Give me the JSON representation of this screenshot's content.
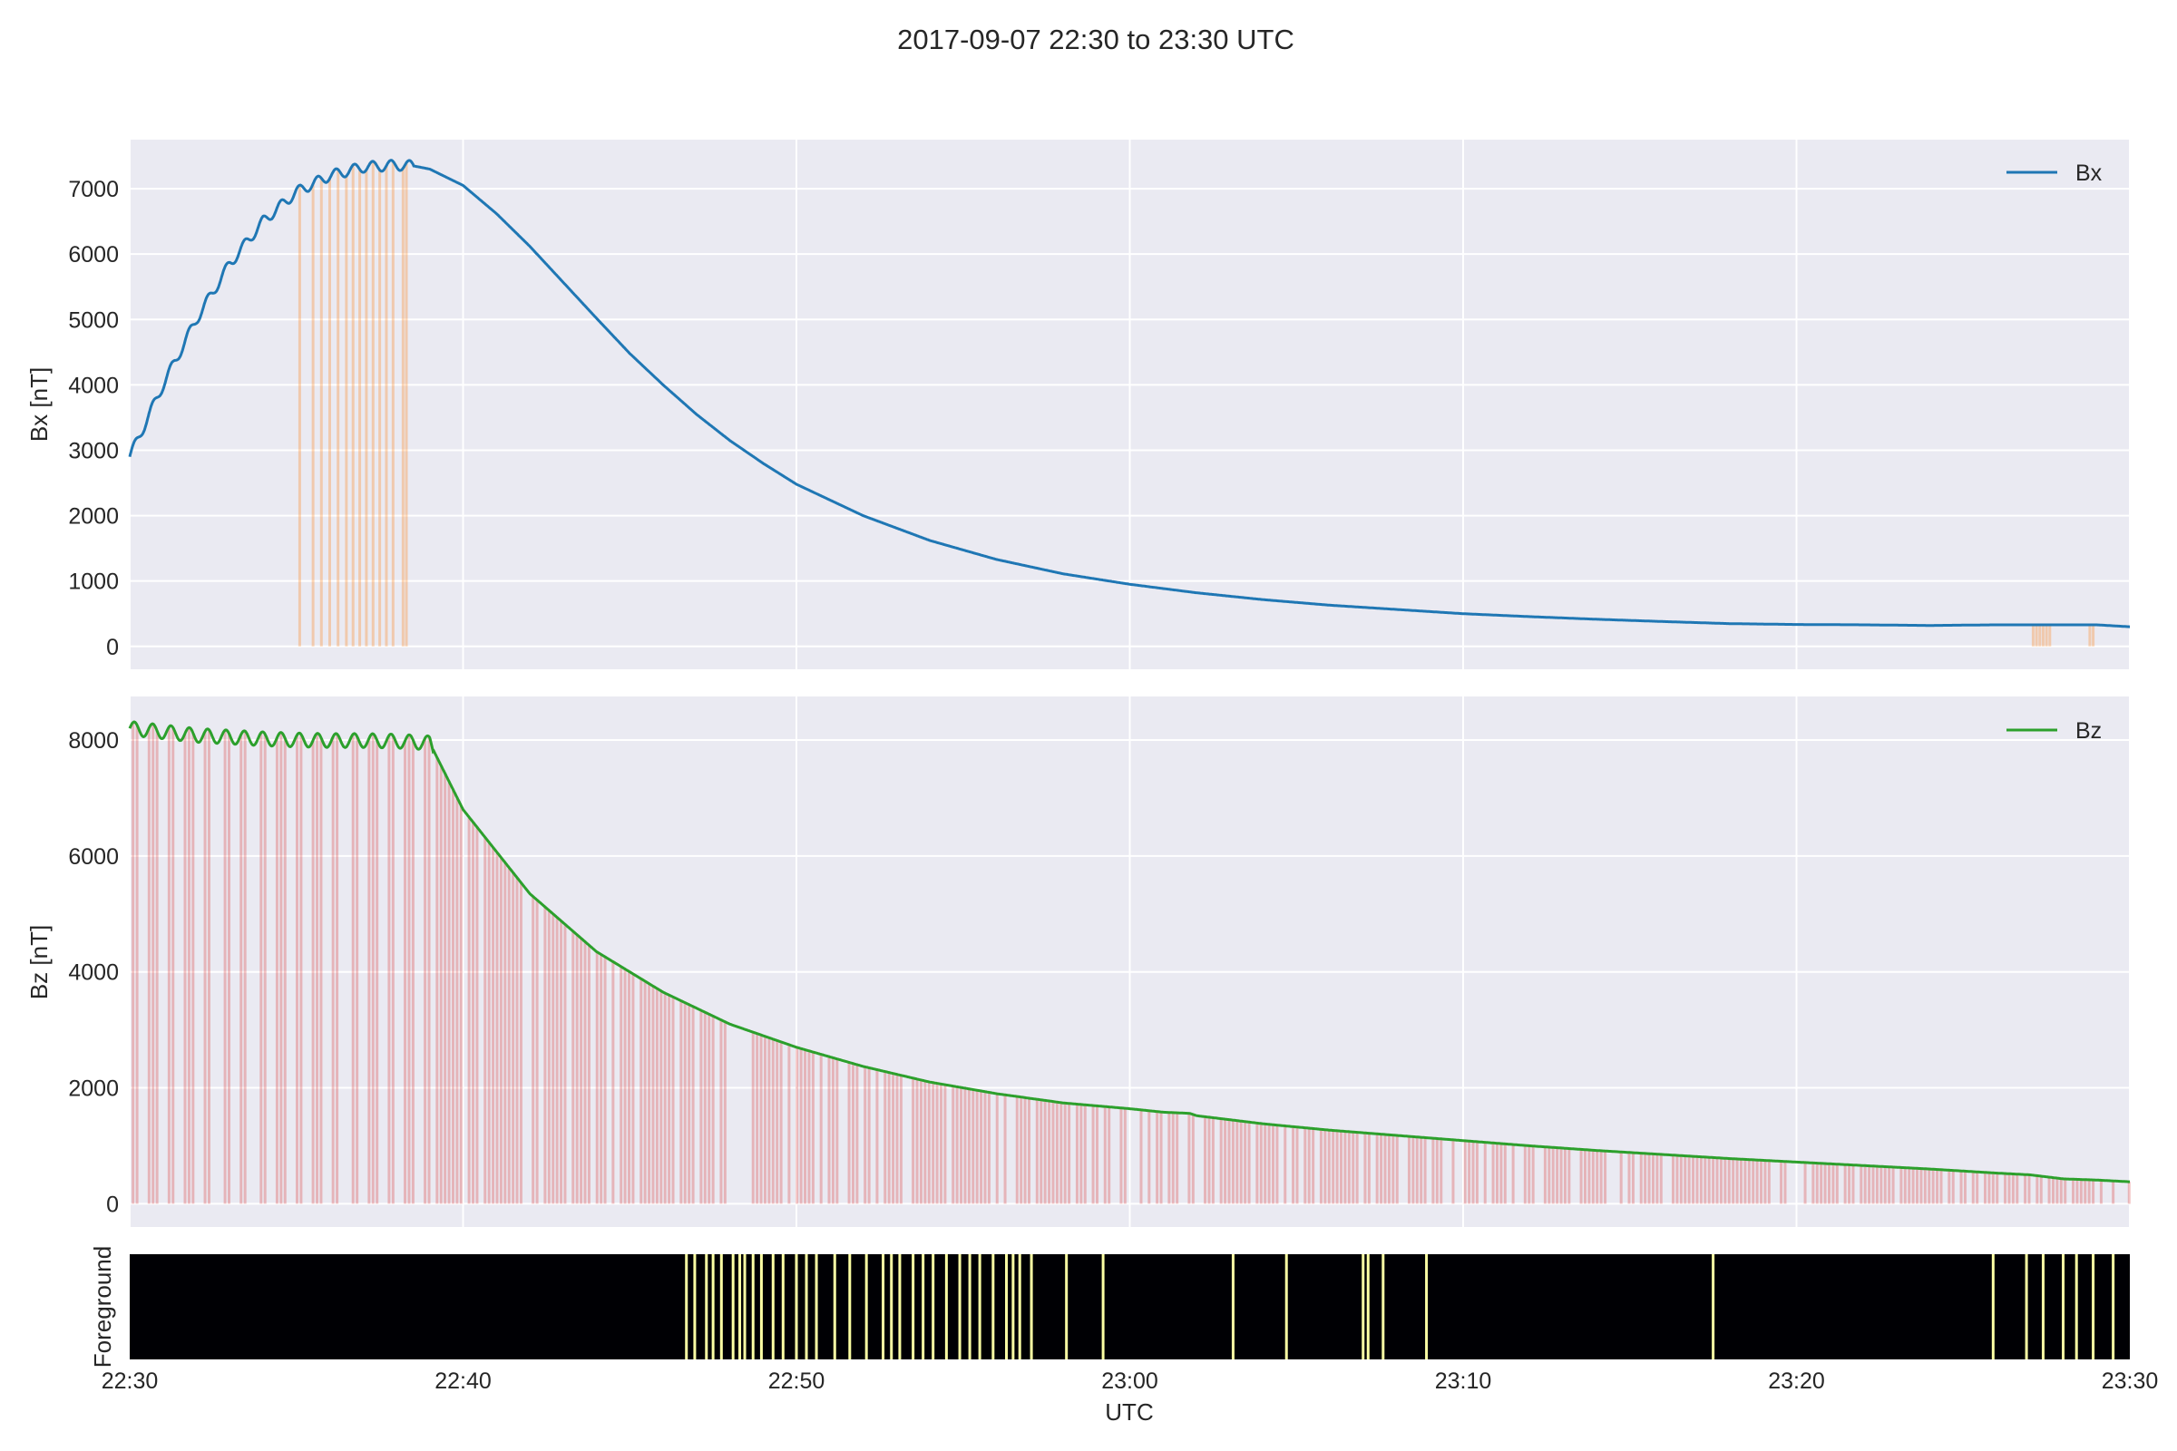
{
  "figure": {
    "title": "2017-09-07 22:30 to 23:30 UTC"
  },
  "chart_data": [
    {
      "id": "bx",
      "type": "line",
      "ylabel": "Bx [nT]",
      "ylim": [
        -350,
        7750
      ],
      "yticks": [
        0,
        1000,
        2000,
        3000,
        4000,
        5000,
        6000,
        7000
      ],
      "xlim_minutes": [
        0,
        60
      ],
      "grid": true,
      "legend": {
        "position": "top-right",
        "label": "Bx"
      },
      "series": [
        {
          "name": "Bx",
          "color": "#1f77b4",
          "t_minutes": [
            0,
            1,
            2,
            3,
            4,
            5,
            6,
            7,
            8,
            8.5,
            9,
            10,
            11,
            12,
            13,
            14,
            15,
            16,
            17,
            18,
            19,
            20,
            22,
            24,
            26,
            28,
            30,
            32,
            34,
            36,
            38,
            40,
            42,
            44,
            46,
            48,
            50,
            52,
            54,
            56,
            57,
            58,
            59,
            60
          ],
          "values": [
            2900,
            4000,
            5000,
            5850,
            6500,
            6950,
            7200,
            7330,
            7360,
            7350,
            7300,
            7050,
            6620,
            6120,
            5570,
            5020,
            4480,
            4000,
            3550,
            3150,
            2800,
            2480,
            2000,
            1620,
            1330,
            1110,
            950,
            820,
            715,
            630,
            565,
            500,
            455,
            415,
            380,
            348,
            335,
            330,
            320,
            330,
            330,
            330,
            330,
            300
          ]
        }
      ],
      "oscillation": {
        "period_minutes": 0.55,
        "amplitude": 80,
        "until_minutes": 8.5
      },
      "shaded_intervals": {
        "color": "#ff7f0e",
        "opacity": 0.3,
        "t_minutes": [
          5.1,
          5.5,
          5.75,
          6.0,
          6.25,
          6.5,
          6.7,
          6.9,
          7.1,
          7.3,
          7.5,
          7.7,
          7.9,
          8.2,
          8.3,
          57.1,
          57.2,
          57.3,
          57.4,
          57.5,
          57.6,
          58.8,
          58.9
        ]
      }
    },
    {
      "id": "bz",
      "type": "line",
      "ylabel": "Bz [nT]",
      "ylim": [
        -400,
        8750
      ],
      "yticks": [
        0,
        2000,
        4000,
        6000,
        8000
      ],
      "xlim_minutes": [
        0,
        60
      ],
      "grid": true,
      "legend": {
        "position": "top-right",
        "label": "Bz"
      },
      "series": [
        {
          "name": "Bz",
          "color": "#2ca02c",
          "t_minutes": [
            0,
            1,
            2,
            3,
            4,
            5,
            6,
            7,
            8,
            9,
            10,
            12,
            14,
            16,
            18,
            20,
            22,
            24,
            26,
            28,
            30,
            31,
            31.8,
            32,
            34,
            36,
            38,
            40,
            42,
            44,
            46,
            48,
            50,
            52,
            54,
            56,
            57,
            58,
            59,
            60
          ],
          "values": [
            8200,
            8140,
            8080,
            8050,
            8020,
            8000,
            7990,
            7990,
            7980,
            7950,
            6800,
            5350,
            4350,
            3650,
            3100,
            2700,
            2370,
            2100,
            1900,
            1740,
            1640,
            1580,
            1560,
            1520,
            1380,
            1270,
            1180,
            1090,
            1000,
            920,
            850,
            780,
            720,
            660,
            600,
            530,
            500,
            430,
            410,
            380
          ]
        }
      ],
      "oscillation": {
        "period_minutes": 0.55,
        "amplitude": 120,
        "until_minutes": 9.1
      },
      "filled_fraction": 0.7,
      "fill_color": "#d62728",
      "fill_opacity": 0.28
    },
    {
      "id": "foreground",
      "type": "heatmap",
      "ylabel": "Foreground",
      "xlim_minutes": [
        0,
        60
      ],
      "background_color": "#000004",
      "flag_color": "#fcffa4",
      "flagged_t_minutes": [
        16.7,
        16.95,
        17.3,
        17.5,
        17.75,
        18.1,
        18.3,
        18.45,
        18.7,
        18.95,
        19.3,
        19.6,
        20.0,
        20.3,
        20.6,
        21.15,
        21.6,
        22.1,
        22.6,
        22.85,
        23.1,
        23.5,
        23.8,
        24.1,
        24.5,
        24.9,
        25.2,
        25.5,
        25.9,
        26.3,
        26.5,
        26.7,
        27.05,
        28.1,
        29.2,
        33.1,
        34.7,
        37.0,
        37.15,
        37.6,
        38.9,
        47.5,
        55.9,
        56.9,
        57.4,
        58.0,
        58.4,
        58.9,
        59.5
      ]
    }
  ],
  "x_axis": {
    "label": "UTC",
    "ticks": [
      {
        "t_minutes": 0,
        "label": "22:30"
      },
      {
        "t_minutes": 10,
        "label": "22:40"
      },
      {
        "t_minutes": 20,
        "label": "22:50"
      },
      {
        "t_minutes": 30,
        "label": "23:00"
      },
      {
        "t_minutes": 40,
        "label": "23:10"
      },
      {
        "t_minutes": 50,
        "label": "23:20"
      },
      {
        "t_minutes": 60,
        "label": "23:30"
      }
    ]
  }
}
